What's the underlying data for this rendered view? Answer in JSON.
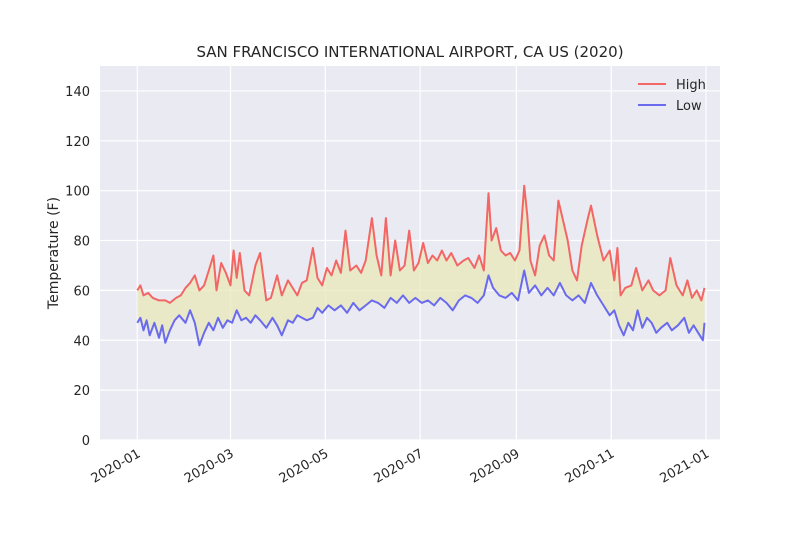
{
  "chart_data": {
    "type": "line",
    "title": "SAN FRANCISCO INTERNATIONAL AIRPORT, CA US (2020)",
    "xlabel": "",
    "ylabel": "Temperature (F)",
    "ylim": [
      0,
      150
    ],
    "yticks": [
      0,
      20,
      40,
      60,
      80,
      100,
      120,
      140
    ],
    "xlim": [
      "2019-12-08",
      "2021-01-10"
    ],
    "xticks": [
      "2020-01",
      "2020-03",
      "2020-05",
      "2020-07",
      "2020-09",
      "2020-11",
      "2021-01"
    ],
    "xtick_dates": [
      "2020-01-01",
      "2020-03-01",
      "2020-05-01",
      "2020-07-01",
      "2020-09-01",
      "2020-11-01",
      "2021-01-01"
    ],
    "grid": true,
    "legend_position": "top-right",
    "fill_between": {
      "color": "#e8e8b8",
      "opacity": 0.75
    },
    "series": [
      {
        "name": "High",
        "color": "#f26666",
        "points": [
          [
            "2020-01-01",
            60
          ],
          [
            "2020-01-03",
            62
          ],
          [
            "2020-01-05",
            58
          ],
          [
            "2020-01-08",
            59
          ],
          [
            "2020-01-11",
            57
          ],
          [
            "2020-01-15",
            56
          ],
          [
            "2020-01-19",
            56
          ],
          [
            "2020-01-22",
            55
          ],
          [
            "2020-01-26",
            57
          ],
          [
            "2020-01-29",
            58
          ],
          [
            "2020-02-01",
            61
          ],
          [
            "2020-02-04",
            63
          ],
          [
            "2020-02-07",
            66
          ],
          [
            "2020-02-10",
            60
          ],
          [
            "2020-02-13",
            62
          ],
          [
            "2020-02-16",
            68
          ],
          [
            "2020-02-19",
            74
          ],
          [
            "2020-02-21",
            60
          ],
          [
            "2020-02-24",
            71
          ],
          [
            "2020-02-27",
            67
          ],
          [
            "2020-03-01",
            62
          ],
          [
            "2020-03-03",
            76
          ],
          [
            "2020-03-05",
            65
          ],
          [
            "2020-03-07",
            75
          ],
          [
            "2020-03-10",
            60
          ],
          [
            "2020-03-13",
            58
          ],
          [
            "2020-03-17",
            70
          ],
          [
            "2020-03-20",
            75
          ],
          [
            "2020-03-24",
            56
          ],
          [
            "2020-03-27",
            57
          ],
          [
            "2020-03-31",
            66
          ],
          [
            "2020-04-03",
            58
          ],
          [
            "2020-04-07",
            64
          ],
          [
            "2020-04-10",
            61
          ],
          [
            "2020-04-13",
            58
          ],
          [
            "2020-04-16",
            63
          ],
          [
            "2020-04-19",
            64
          ],
          [
            "2020-04-23",
            77
          ],
          [
            "2020-04-26",
            65
          ],
          [
            "2020-04-29",
            62
          ],
          [
            "2020-05-02",
            69
          ],
          [
            "2020-05-05",
            66
          ],
          [
            "2020-05-08",
            72
          ],
          [
            "2020-05-11",
            67
          ],
          [
            "2020-05-14",
            84
          ],
          [
            "2020-05-17",
            68
          ],
          [
            "2020-05-21",
            70
          ],
          [
            "2020-05-24",
            67
          ],
          [
            "2020-05-27",
            72
          ],
          [
            "2020-05-31",
            89
          ],
          [
            "2020-06-03",
            74
          ],
          [
            "2020-06-06",
            66
          ],
          [
            "2020-06-09",
            89
          ],
          [
            "2020-06-12",
            66
          ],
          [
            "2020-06-15",
            80
          ],
          [
            "2020-06-18",
            68
          ],
          [
            "2020-06-21",
            70
          ],
          [
            "2020-06-24",
            84
          ],
          [
            "2020-06-27",
            68
          ],
          [
            "2020-06-30",
            71
          ],
          [
            "2020-07-03",
            79
          ],
          [
            "2020-07-06",
            71
          ],
          [
            "2020-07-09",
            74
          ],
          [
            "2020-07-12",
            72
          ],
          [
            "2020-07-15",
            76
          ],
          [
            "2020-07-18",
            72
          ],
          [
            "2020-07-21",
            75
          ],
          [
            "2020-07-25",
            70
          ],
          [
            "2020-07-29",
            72
          ],
          [
            "2020-08-01",
            73
          ],
          [
            "2020-08-05",
            69
          ],
          [
            "2020-08-08",
            74
          ],
          [
            "2020-08-11",
            68
          ],
          [
            "2020-08-14",
            99
          ],
          [
            "2020-08-16",
            80
          ],
          [
            "2020-08-19",
            85
          ],
          [
            "2020-08-22",
            76
          ],
          [
            "2020-08-25",
            74
          ],
          [
            "2020-08-28",
            75
          ],
          [
            "2020-08-31",
            72
          ],
          [
            "2020-09-03",
            76
          ],
          [
            "2020-09-06",
            102
          ],
          [
            "2020-09-08",
            90
          ],
          [
            "2020-09-10",
            72
          ],
          [
            "2020-09-13",
            66
          ],
          [
            "2020-09-16",
            78
          ],
          [
            "2020-09-19",
            82
          ],
          [
            "2020-09-22",
            74
          ],
          [
            "2020-09-25",
            72
          ],
          [
            "2020-09-28",
            96
          ],
          [
            "2020-10-01",
            88
          ],
          [
            "2020-10-04",
            80
          ],
          [
            "2020-10-07",
            68
          ],
          [
            "2020-10-10",
            64
          ],
          [
            "2020-10-13",
            78
          ],
          [
            "2020-10-17",
            89
          ],
          [
            "2020-10-19",
            94
          ],
          [
            "2020-10-23",
            82
          ],
          [
            "2020-10-27",
            72
          ],
          [
            "2020-10-31",
            76
          ],
          [
            "2020-11-03",
            64
          ],
          [
            "2020-11-05",
            77
          ],
          [
            "2020-11-07",
            58
          ],
          [
            "2020-11-10",
            61
          ],
          [
            "2020-11-14",
            62
          ],
          [
            "2020-11-17",
            69
          ],
          [
            "2020-11-21",
            60
          ],
          [
            "2020-11-25",
            64
          ],
          [
            "2020-11-28",
            60
          ],
          [
            "2020-12-02",
            58
          ],
          [
            "2020-12-06",
            60
          ],
          [
            "2020-12-09",
            73
          ],
          [
            "2020-12-13",
            62
          ],
          [
            "2020-12-17",
            58
          ],
          [
            "2020-12-20",
            64
          ],
          [
            "2020-12-23",
            57
          ],
          [
            "2020-12-26",
            60
          ],
          [
            "2020-12-29",
            56
          ],
          [
            "2020-12-31",
            61
          ]
        ]
      },
      {
        "name": "Low",
        "color": "#6a6aee",
        "points": [
          [
            "2020-01-01",
            47
          ],
          [
            "2020-01-03",
            49
          ],
          [
            "2020-01-05",
            44
          ],
          [
            "2020-01-07",
            48
          ],
          [
            "2020-01-09",
            42
          ],
          [
            "2020-01-12",
            47
          ],
          [
            "2020-01-15",
            41
          ],
          [
            "2020-01-17",
            46
          ],
          [
            "2020-01-19",
            39
          ],
          [
            "2020-01-22",
            44
          ],
          [
            "2020-01-25",
            48
          ],
          [
            "2020-01-28",
            50
          ],
          [
            "2020-02-01",
            47
          ],
          [
            "2020-02-04",
            52
          ],
          [
            "2020-02-07",
            47
          ],
          [
            "2020-02-10",
            38
          ],
          [
            "2020-02-13",
            43
          ],
          [
            "2020-02-16",
            47
          ],
          [
            "2020-02-19",
            44
          ],
          [
            "2020-02-22",
            49
          ],
          [
            "2020-02-25",
            45
          ],
          [
            "2020-02-28",
            48
          ],
          [
            "2020-03-02",
            47
          ],
          [
            "2020-03-05",
            52
          ],
          [
            "2020-03-08",
            48
          ],
          [
            "2020-03-11",
            49
          ],
          [
            "2020-03-14",
            47
          ],
          [
            "2020-03-17",
            50
          ],
          [
            "2020-03-20",
            48
          ],
          [
            "2020-03-24",
            45
          ],
          [
            "2020-03-28",
            49
          ],
          [
            "2020-03-31",
            46
          ],
          [
            "2020-04-03",
            42
          ],
          [
            "2020-04-07",
            48
          ],
          [
            "2020-04-10",
            47
          ],
          [
            "2020-04-13",
            50
          ],
          [
            "2020-04-16",
            49
          ],
          [
            "2020-04-19",
            48
          ],
          [
            "2020-04-23",
            49
          ],
          [
            "2020-04-26",
            53
          ],
          [
            "2020-04-29",
            51
          ],
          [
            "2020-05-03",
            54
          ],
          [
            "2020-05-07",
            52
          ],
          [
            "2020-05-11",
            54
          ],
          [
            "2020-05-15",
            51
          ],
          [
            "2020-05-19",
            55
          ],
          [
            "2020-05-23",
            52
          ],
          [
            "2020-05-27",
            54
          ],
          [
            "2020-05-31",
            56
          ],
          [
            "2020-06-04",
            55
          ],
          [
            "2020-06-08",
            53
          ],
          [
            "2020-06-12",
            57
          ],
          [
            "2020-06-16",
            55
          ],
          [
            "2020-06-20",
            58
          ],
          [
            "2020-06-24",
            55
          ],
          [
            "2020-06-28",
            57
          ],
          [
            "2020-07-02",
            55
          ],
          [
            "2020-07-06",
            56
          ],
          [
            "2020-07-10",
            54
          ],
          [
            "2020-07-14",
            57
          ],
          [
            "2020-07-18",
            55
          ],
          [
            "2020-07-22",
            52
          ],
          [
            "2020-07-26",
            56
          ],
          [
            "2020-07-30",
            58
          ],
          [
            "2020-08-03",
            57
          ],
          [
            "2020-08-07",
            55
          ],
          [
            "2020-08-11",
            58
          ],
          [
            "2020-08-14",
            66
          ],
          [
            "2020-08-17",
            61
          ],
          [
            "2020-08-21",
            58
          ],
          [
            "2020-08-25",
            57
          ],
          [
            "2020-08-29",
            59
          ],
          [
            "2020-09-02",
            56
          ],
          [
            "2020-09-06",
            68
          ],
          [
            "2020-09-09",
            59
          ],
          [
            "2020-09-13",
            62
          ],
          [
            "2020-09-17",
            58
          ],
          [
            "2020-09-21",
            61
          ],
          [
            "2020-09-25",
            58
          ],
          [
            "2020-09-29",
            63
          ],
          [
            "2020-10-03",
            58
          ],
          [
            "2020-10-07",
            56
          ],
          [
            "2020-10-11",
            58
          ],
          [
            "2020-10-15",
            55
          ],
          [
            "2020-10-19",
            63
          ],
          [
            "2020-10-23",
            58
          ],
          [
            "2020-10-27",
            54
          ],
          [
            "2020-10-31",
            50
          ],
          [
            "2020-11-03",
            52
          ],
          [
            "2020-11-06",
            46
          ],
          [
            "2020-11-09",
            42
          ],
          [
            "2020-11-12",
            47
          ],
          [
            "2020-11-15",
            44
          ],
          [
            "2020-11-18",
            52
          ],
          [
            "2020-11-21",
            45
          ],
          [
            "2020-11-24",
            49
          ],
          [
            "2020-11-27",
            47
          ],
          [
            "2020-11-30",
            43
          ],
          [
            "2020-12-03",
            45
          ],
          [
            "2020-12-07",
            47
          ],
          [
            "2020-12-10",
            44
          ],
          [
            "2020-12-14",
            46
          ],
          [
            "2020-12-18",
            49
          ],
          [
            "2020-12-21",
            43
          ],
          [
            "2020-12-24",
            46
          ],
          [
            "2020-12-27",
            43
          ],
          [
            "2020-12-30",
            40
          ],
          [
            "2020-12-31",
            47
          ]
        ]
      }
    ]
  }
}
